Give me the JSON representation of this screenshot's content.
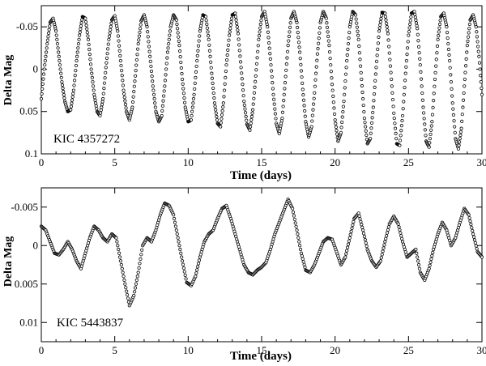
{
  "chart_data": [
    {
      "type": "scatter",
      "star_label": "KIC 4357272",
      "xlabel": "Time (days)",
      "ylabel": "Delta Mag",
      "xlim": [
        0,
        30
      ],
      "ylim": [
        0.1,
        -0.075
      ],
      "y_inverted": true,
      "x_ticks": [
        0,
        5,
        10,
        15,
        20,
        25,
        30
      ],
      "x_tick_labels": [
        "0",
        "5",
        "10",
        "15",
        "20",
        "25",
        "30"
      ],
      "y_ticks": [
        -0.05,
        0,
        0.05,
        0.1
      ],
      "y_tick_labels": [
        "-0.05",
        "0",
        "0.05",
        "0.1"
      ],
      "marker": "open-circle",
      "points": [
        [
          0.0,
          0.035
        ],
        [
          0.2,
          0.0
        ],
        [
          0.4,
          -0.03
        ],
        [
          0.6,
          -0.055
        ],
        [
          0.8,
          -0.06
        ],
        [
          1.0,
          -0.045
        ],
        [
          1.2,
          -0.015
        ],
        [
          1.4,
          0.015
        ],
        [
          1.6,
          0.038
        ],
        [
          1.8,
          0.05
        ],
        [
          2.0,
          0.048
        ],
        [
          2.2,
          0.025
        ],
        [
          2.4,
          -0.01
        ],
        [
          2.6,
          -0.04
        ],
        [
          2.8,
          -0.062
        ],
        [
          3.0,
          -0.06
        ],
        [
          3.2,
          -0.035
        ],
        [
          3.4,
          0.0
        ],
        [
          3.6,
          0.03
        ],
        [
          3.8,
          0.05
        ],
        [
          4.0,
          0.055
        ],
        [
          4.2,
          0.035
        ],
        [
          4.4,
          -0.002
        ],
        [
          4.6,
          -0.035
        ],
        [
          4.8,
          -0.058
        ],
        [
          5.0,
          -0.063
        ],
        [
          5.2,
          -0.045
        ],
        [
          5.4,
          -0.01
        ],
        [
          5.6,
          0.025
        ],
        [
          5.8,
          0.05
        ],
        [
          6.0,
          0.06
        ],
        [
          6.2,
          0.045
        ],
        [
          6.4,
          0.008
        ],
        [
          6.6,
          -0.03
        ],
        [
          6.8,
          -0.057
        ],
        [
          7.0,
          -0.064
        ],
        [
          7.2,
          -0.05
        ],
        [
          7.4,
          -0.015
        ],
        [
          7.6,
          0.02
        ],
        [
          7.8,
          0.05
        ],
        [
          8.0,
          0.062
        ],
        [
          8.2,
          0.055
        ],
        [
          8.4,
          0.02
        ],
        [
          8.6,
          -0.02
        ],
        [
          8.8,
          -0.05
        ],
        [
          9.0,
          -0.064
        ],
        [
          9.2,
          -0.058
        ],
        [
          9.4,
          -0.028
        ],
        [
          9.6,
          0.012
        ],
        [
          9.8,
          0.045
        ],
        [
          10.0,
          0.062
        ],
        [
          10.2,
          0.06
        ],
        [
          10.4,
          0.03
        ],
        [
          10.6,
          -0.01
        ],
        [
          10.8,
          -0.045
        ],
        [
          11.0,
          -0.064
        ],
        [
          11.2,
          -0.062
        ],
        [
          11.4,
          -0.035
        ],
        [
          11.6,
          0.005
        ],
        [
          11.8,
          0.04
        ],
        [
          12.0,
          0.064
        ],
        [
          12.2,
          0.068
        ],
        [
          12.4,
          0.04
        ],
        [
          12.6,
          -0.005
        ],
        [
          12.8,
          -0.04
        ],
        [
          13.0,
          -0.064
        ],
        [
          13.2,
          -0.066
        ],
        [
          13.4,
          -0.042
        ],
        [
          13.6,
          -0.002
        ],
        [
          13.8,
          0.038
        ],
        [
          14.0,
          0.065
        ],
        [
          14.2,
          0.072
        ],
        [
          14.4,
          0.048
        ],
        [
          14.6,
          0.008
        ],
        [
          14.8,
          -0.035
        ],
        [
          15.0,
          -0.062
        ],
        [
          15.2,
          -0.068
        ],
        [
          15.4,
          -0.05
        ],
        [
          15.6,
          -0.012
        ],
        [
          15.8,
          0.03
        ],
        [
          16.0,
          0.064
        ],
        [
          16.2,
          0.076
        ],
        [
          16.4,
          0.058
        ],
        [
          16.6,
          0.016
        ],
        [
          16.8,
          -0.028
        ],
        [
          17.0,
          -0.06
        ],
        [
          17.2,
          -0.068
        ],
        [
          17.4,
          -0.055
        ],
        [
          17.6,
          -0.02
        ],
        [
          17.8,
          0.024
        ],
        [
          18.0,
          0.062
        ],
        [
          18.2,
          0.08
        ],
        [
          18.4,
          0.068
        ],
        [
          18.6,
          0.028
        ],
        [
          18.8,
          -0.018
        ],
        [
          19.0,
          -0.055
        ],
        [
          19.2,
          -0.068
        ],
        [
          19.4,
          -0.06
        ],
        [
          19.6,
          -0.028
        ],
        [
          19.8,
          0.018
        ],
        [
          20.0,
          0.06
        ],
        [
          20.2,
          0.085
        ],
        [
          20.4,
          0.075
        ],
        [
          20.6,
          0.038
        ],
        [
          20.8,
          -0.01
        ],
        [
          21.0,
          -0.05
        ],
        [
          21.2,
          -0.068
        ],
        [
          21.4,
          -0.064
        ],
        [
          21.6,
          -0.035
        ],
        [
          21.8,
          0.012
        ],
        [
          22.0,
          0.058
        ],
        [
          22.2,
          0.088
        ],
        [
          22.4,
          0.082
        ],
        [
          22.6,
          0.045
        ],
        [
          22.8,
          -0.002
        ],
        [
          23.0,
          -0.045
        ],
        [
          23.2,
          -0.067
        ],
        [
          23.4,
          -0.066
        ],
        [
          23.6,
          -0.042
        ],
        [
          23.8,
          0.004
        ],
        [
          24.0,
          0.052
        ],
        [
          24.2,
          0.088
        ],
        [
          24.4,
          0.09
        ],
        [
          24.6,
          0.055
        ],
        [
          24.8,
          0.005
        ],
        [
          25.0,
          -0.04
        ],
        [
          25.2,
          -0.066
        ],
        [
          25.4,
          -0.068
        ],
        [
          25.6,
          -0.048
        ],
        [
          25.8,
          -0.005
        ],
        [
          26.0,
          0.045
        ],
        [
          26.2,
          0.085
        ],
        [
          26.4,
          0.092
        ],
        [
          26.6,
          0.062
        ],
        [
          26.8,
          0.012
        ],
        [
          27.0,
          -0.035
        ],
        [
          27.2,
          -0.062
        ],
        [
          27.4,
          -0.066
        ],
        [
          27.6,
          -0.05
        ],
        [
          27.8,
          -0.01
        ],
        [
          28.0,
          0.04
        ],
        [
          28.2,
          0.082
        ],
        [
          28.4,
          0.094
        ],
        [
          28.6,
          0.07
        ],
        [
          28.8,
          0.02
        ],
        [
          29.0,
          -0.028
        ],
        [
          29.2,
          -0.058
        ],
        [
          29.4,
          -0.064
        ],
        [
          29.6,
          -0.05
        ],
        [
          29.8,
          -0.015
        ],
        [
          30.0,
          0.03
        ]
      ]
    },
    {
      "type": "scatter",
      "star_label": "KIC 5443837",
      "xlabel": "Time (days)",
      "ylabel": "Delta Mag",
      "xlim": [
        0,
        30
      ],
      "ylim": [
        0.0125,
        -0.0075
      ],
      "y_inverted": true,
      "x_ticks": [
        0,
        5,
        10,
        15,
        20,
        25,
        30
      ],
      "x_tick_labels": [
        "0",
        "5",
        "10",
        "15",
        "20",
        "25",
        "30"
      ],
      "y_ticks": [
        -0.005,
        0,
        0.005,
        0.01
      ],
      "y_tick_labels": [
        "-0.005",
        "0",
        "0.005",
        "0.01"
      ],
      "marker": "open-circle",
      "points": [
        [
          0.0,
          -0.0025
        ],
        [
          0.3,
          -0.002
        ],
        [
          0.6,
          -0.0005
        ],
        [
          0.9,
          0.001
        ],
        [
          1.2,
          0.0012
        ],
        [
          1.5,
          0.0005
        ],
        [
          1.8,
          -0.0005
        ],
        [
          2.1,
          0.0005
        ],
        [
          2.4,
          0.002
        ],
        [
          2.7,
          0.003
        ],
        [
          3.0,
          0.001
        ],
        [
          3.3,
          -0.001
        ],
        [
          3.6,
          -0.0025
        ],
        [
          3.9,
          -0.002
        ],
        [
          4.2,
          -0.001
        ],
        [
          4.5,
          -0.0005
        ],
        [
          4.8,
          -0.0015
        ],
        [
          5.1,
          -0.001
        ],
        [
          5.4,
          0.002
        ],
        [
          5.7,
          0.005
        ],
        [
          6.0,
          0.0078
        ],
        [
          6.3,
          0.0065
        ],
        [
          6.6,
          0.0035
        ],
        [
          6.9,
          0.0
        ],
        [
          7.2,
          -0.001
        ],
        [
          7.5,
          -0.0005
        ],
        [
          7.8,
          -0.002
        ],
        [
          8.1,
          -0.004
        ],
        [
          8.4,
          -0.0055
        ],
        [
          8.7,
          -0.0052
        ],
        [
          9.0,
          -0.004
        ],
        [
          9.3,
          -0.001
        ],
        [
          9.6,
          0.002
        ],
        [
          9.9,
          0.0048
        ],
        [
          10.2,
          0.0052
        ],
        [
          10.5,
          0.004
        ],
        [
          10.8,
          0.0015
        ],
        [
          11.1,
          -0.0005
        ],
        [
          11.4,
          -0.0015
        ],
        [
          11.7,
          -0.002
        ],
        [
          12.0,
          -0.0035
        ],
        [
          12.3,
          -0.0048
        ],
        [
          12.6,
          -0.0052
        ],
        [
          12.9,
          -0.0035
        ],
        [
          13.2,
          -0.0015
        ],
        [
          13.5,
          0.0005
        ],
        [
          13.8,
          0.0025
        ],
        [
          14.1,
          0.0035
        ],
        [
          14.4,
          0.0038
        ],
        [
          14.7,
          0.0032
        ],
        [
          15.0,
          0.0028
        ],
        [
          15.3,
          0.0022
        ],
        [
          15.6,
          0.0005
        ],
        [
          15.9,
          -0.0015
        ],
        [
          16.2,
          -0.003
        ],
        [
          16.5,
          -0.0045
        ],
        [
          16.8,
          -0.006
        ],
        [
          17.1,
          -0.0048
        ],
        [
          17.4,
          -0.002
        ],
        [
          17.7,
          0.001
        ],
        [
          18.0,
          0.0032
        ],
        [
          18.3,
          0.0035
        ],
        [
          18.6,
          0.0025
        ],
        [
          18.9,
          0.001
        ],
        [
          19.2,
          -0.0005
        ],
        [
          19.5,
          -0.001
        ],
        [
          19.8,
          -0.0008
        ],
        [
          20.1,
          0.0008
        ],
        [
          20.4,
          0.0025
        ],
        [
          20.7,
          0.0015
        ],
        [
          21.0,
          -0.001
        ],
        [
          21.3,
          -0.0035
        ],
        [
          21.6,
          -0.0042
        ],
        [
          21.9,
          -0.002
        ],
        [
          22.2,
          0.0005
        ],
        [
          22.5,
          0.002
        ],
        [
          22.8,
          0.0028
        ],
        [
          23.1,
          0.002
        ],
        [
          23.4,
          -0.0005
        ],
        [
          23.7,
          -0.0028
        ],
        [
          24.0,
          -0.0038
        ],
        [
          24.3,
          -0.0028
        ],
        [
          24.6,
          -0.0005
        ],
        [
          24.9,
          0.0015
        ],
        [
          25.2,
          0.001
        ],
        [
          25.5,
          0.0005
        ],
        [
          25.8,
          0.0035
        ],
        [
          26.1,
          0.0045
        ],
        [
          26.4,
          0.003
        ],
        [
          26.7,
          0.0005
        ],
        [
          27.0,
          -0.0015
        ],
        [
          27.3,
          -0.003
        ],
        [
          27.6,
          -0.002
        ],
        [
          27.9,
          0.0
        ],
        [
          28.2,
          -0.001
        ],
        [
          28.5,
          -0.003
        ],
        [
          28.8,
          -0.0048
        ],
        [
          29.1,
          -0.004
        ],
        [
          29.4,
          -0.0015
        ],
        [
          29.7,
          0.0008
        ],
        [
          30.0,
          0.0015
        ]
      ]
    }
  ]
}
